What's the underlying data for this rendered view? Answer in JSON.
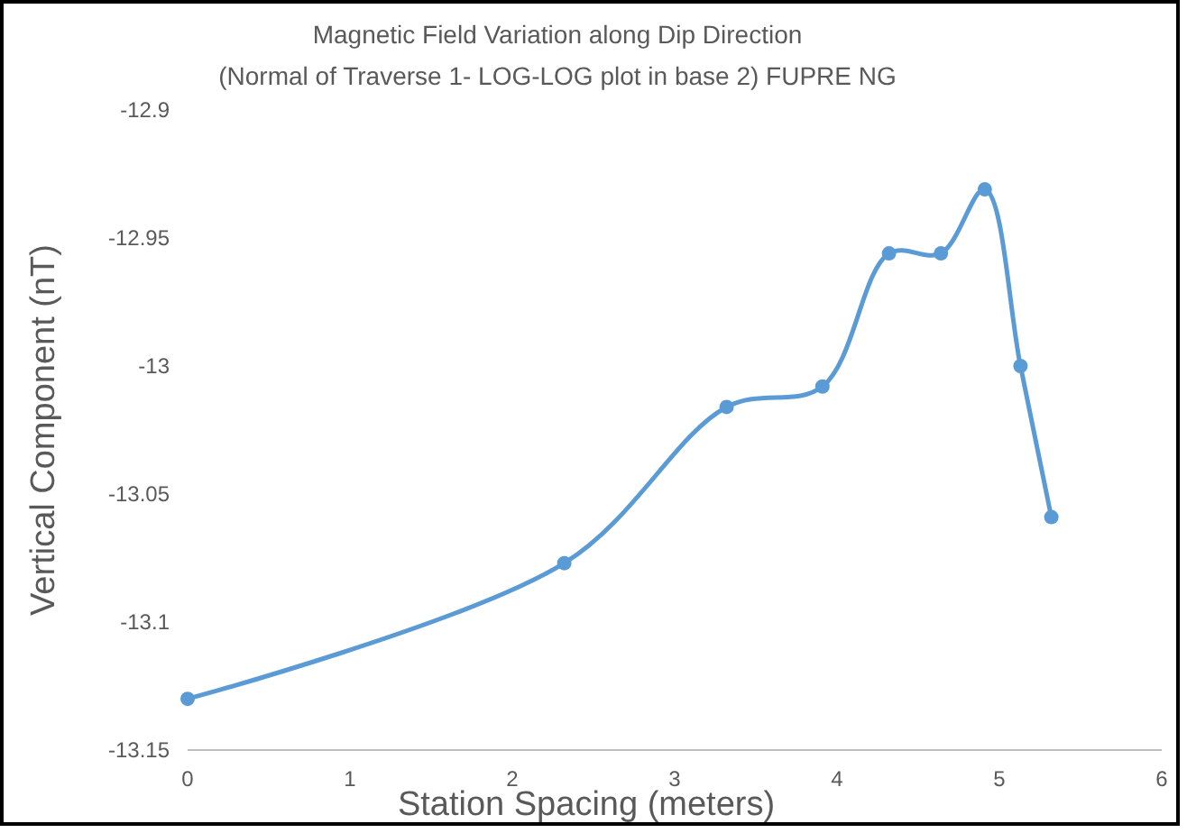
{
  "chart_data": {
    "type": "line",
    "title": "Magnetic Field Variation along Dip Direction",
    "subtitle": "(Normal of Traverse 1- LOG-LOG plot in base 2)  FUPRE NG",
    "xlabel": "Station Spacing (meters)",
    "ylabel": "Vertical Component (nT)",
    "x": [
      0,
      2.32,
      3.32,
      3.91,
      4.32,
      4.64,
      4.91,
      5.13,
      5.32
    ],
    "series": [
      {
        "color": "#5b9bd5",
        "values": [
          -13.13,
          -13.077,
          -13.016,
          -13.008,
          -12.956,
          -12.956,
          -12.931,
          -13,
          -13.059
        ]
      }
    ],
    "xlim": [
      0,
      6
    ],
    "xticks": [
      0,
      1,
      2,
      3,
      4,
      5,
      6
    ],
    "ylim": [
      -13.15,
      -12.9
    ],
    "yticks": [
      -13.15,
      -13.1,
      -13.05,
      -13,
      -12.95,
      -12.9
    ],
    "grid": false,
    "marker": "circle",
    "line_style": "solid"
  }
}
